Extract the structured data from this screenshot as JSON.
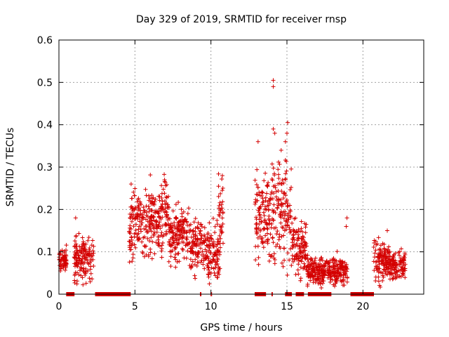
{
  "chart_data": {
    "type": "scatter",
    "title": "Day 329 of 2019, SRMTID for receiver rnsp",
    "xlabel": "GPS time / hours",
    "ylabel": "SRMTID / TECUs",
    "xlim": [
      0,
      24
    ],
    "ylim": [
      0,
      0.6
    ],
    "xticks": [
      0,
      5,
      10,
      15,
      20
    ],
    "yticks": [
      0,
      0.1,
      0.2,
      0.3,
      0.4,
      0.5,
      0.6
    ],
    "ytick_labels": [
      "0",
      "0.1",
      "0.2",
      "0.3",
      "0.4",
      "0.5",
      "0.6"
    ],
    "grid": true,
    "marker": "+",
    "color": "#d40000",
    "clusters": [
      {
        "x0": 0.0,
        "x1": 0.5,
        "y": 0.08,
        "spread": 0.015
      },
      {
        "x0": 1.0,
        "x1": 2.3,
        "y": 0.085,
        "spread": 0.025
      },
      {
        "x0": 4.6,
        "x1": 6.8,
        "y": 0.17,
        "spread": 0.04
      },
      {
        "x0": 6.8,
        "x1": 7.2,
        "y": 0.2,
        "spread": 0.04
      },
      {
        "x0": 7.2,
        "x1": 8.6,
        "y": 0.14,
        "spread": 0.03
      },
      {
        "x0": 8.6,
        "x1": 9.6,
        "y": 0.11,
        "spread": 0.03
      },
      {
        "x0": 9.6,
        "x1": 10.6,
        "y": 0.1,
        "spread": 0.03
      },
      {
        "x0": 10.5,
        "x1": 10.8,
        "y": 0.2,
        "spread": 0.05
      },
      {
        "x0": 12.9,
        "x1": 14.0,
        "y": 0.18,
        "spread": 0.05
      },
      {
        "x0": 14.0,
        "x1": 15.3,
        "y": 0.2,
        "spread": 0.06
      },
      {
        "x0": 15.3,
        "x1": 16.3,
        "y": 0.11,
        "spread": 0.03
      },
      {
        "x0": 16.3,
        "x1": 19.0,
        "y": 0.055,
        "spread": 0.015
      },
      {
        "x0": 20.7,
        "x1": 21.5,
        "y": 0.08,
        "spread": 0.025
      },
      {
        "x0": 21.5,
        "x1": 22.8,
        "y": 0.07,
        "spread": 0.018
      }
    ],
    "outliers": [
      {
        "x": 14.1,
        "y": 0.505
      },
      {
        "x": 14.1,
        "y": 0.49
      },
      {
        "x": 15.05,
        "y": 0.405
      },
      {
        "x": 14.1,
        "y": 0.39
      },
      {
        "x": 14.2,
        "y": 0.38
      },
      {
        "x": 15.0,
        "y": 0.38
      },
      {
        "x": 13.1,
        "y": 0.36
      },
      {
        "x": 14.9,
        "y": 0.36
      },
      {
        "x": 10.75,
        "y": 0.28
      },
      {
        "x": 6.95,
        "y": 0.27
      },
      {
        "x": 4.75,
        "y": 0.26
      },
      {
        "x": 1.1,
        "y": 0.18
      },
      {
        "x": 18.95,
        "y": 0.18
      },
      {
        "x": 18.9,
        "y": 0.16
      },
      {
        "x": 21.6,
        "y": 0.15
      },
      {
        "x": 14.75,
        "y": 0.065
      }
    ],
    "zero_ranges": [
      [
        0.5,
        1.0
      ],
      [
        2.4,
        4.7
      ],
      [
        9.3,
        9.35
      ],
      [
        10.0,
        10.05
      ],
      [
        12.9,
        13.6
      ],
      [
        14.0,
        14.05
      ],
      [
        14.9,
        15.3
      ],
      [
        15.6,
        16.1
      ],
      [
        16.4,
        17.9
      ],
      [
        19.2,
        20.7
      ]
    ]
  }
}
